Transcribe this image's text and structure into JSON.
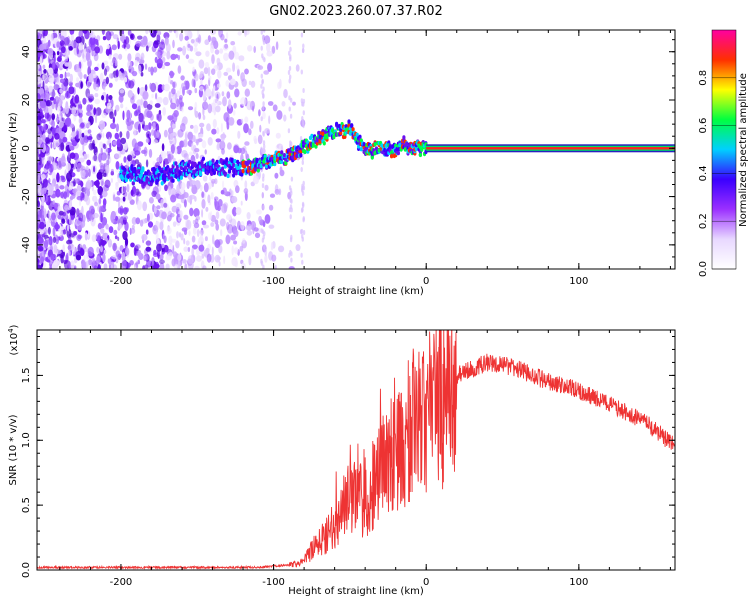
{
  "title": "GN02.2023.260.07.37.R02",
  "chart_data": [
    {
      "type": "heatmap",
      "xlabel": "Height of straight line (km)",
      "ylabel": "Frequency (Hz)",
      "xlim": [
        -255,
        163
      ],
      "ylim": [
        -50,
        49
      ],
      "x_ticks": [
        -200,
        -100,
        0,
        100
      ],
      "x_tick_labels": [
        "-200",
        "-100",
        "0",
        "100"
      ],
      "y_ticks": [
        -40,
        -20,
        0,
        20,
        40
      ],
      "y_tick_labels": [
        "-40",
        "-20",
        "0",
        "20",
        "40"
      ],
      "colorbar": {
        "label": "Normalized spectral amplitude",
        "range": [
          0,
          1
        ],
        "ticks": [
          0.0,
          0.2,
          0.4,
          0.6,
          0.8
        ],
        "tick_labels": [
          "0.0",
          "0.2",
          "0.4",
          "0.6",
          "0.8"
        ],
        "colors": [
          "#ffffff",
          "#e8d8ff",
          "#9b30ff",
          "#3a00ff",
          "#00d0ff",
          "#00ff40",
          "#ffff00",
          "#ff3000",
          "#ff00a0"
        ]
      },
      "ridge": {
        "x": [
          -200,
          -185,
          -175,
          -160,
          -150,
          -130,
          -120,
          -110,
          -100,
          -90,
          -80,
          -70,
          -60,
          -50,
          -40,
          -30,
          -20,
          -15,
          -10,
          0,
          163
        ],
        "y": [
          -10,
          -12,
          -11,
          -9,
          -8,
          -8,
          -8,
          -7,
          -5,
          -3,
          0,
          4,
          7,
          8,
          -1,
          0,
          -1,
          2,
          0,
          0,
          0
        ]
      },
      "grid": false
    },
    {
      "type": "line",
      "xlabel": "Height of straight line (km)",
      "ylabel": "SNR (10 * v/v)",
      "scale_label": "(x10",
      "scale_exp": "4",
      "scale_close": ")",
      "xlim": [
        -255,
        163
      ],
      "ylim": [
        0,
        1.85
      ],
      "x_ticks": [
        -200,
        -100,
        0,
        100
      ],
      "x_tick_labels": [
        "-200",
        "-100",
        "0",
        "100"
      ],
      "y_ticks": [
        0.0,
        0.5,
        1.0,
        1.5
      ],
      "y_tick_labels": [
        "0.0",
        "0.5",
        "1.0",
        "1.5"
      ],
      "series": [
        {
          "color": "#ee3333",
          "x": [
            -255,
            -200,
            -150,
            -110,
            -100,
            -90,
            -82,
            -75,
            -60,
            -50,
            -40,
            -30,
            -20,
            -10,
            0,
            10,
            20,
            30,
            40,
            50,
            60,
            70,
            80,
            90,
            100,
            110,
            120,
            130,
            140,
            150,
            163
          ],
          "y": [
            0.02,
            0.02,
            0.02,
            0.02,
            0.03,
            0.04,
            0.05,
            0.15,
            0.35,
            0.6,
            0.5,
            0.8,
            0.9,
            1.1,
            1.2,
            1.35,
            1.5,
            1.55,
            1.6,
            1.58,
            1.55,
            1.5,
            1.45,
            1.42,
            1.38,
            1.33,
            1.28,
            1.22,
            1.16,
            1.08,
            0.95
          ]
        }
      ],
      "grid": false
    }
  ]
}
